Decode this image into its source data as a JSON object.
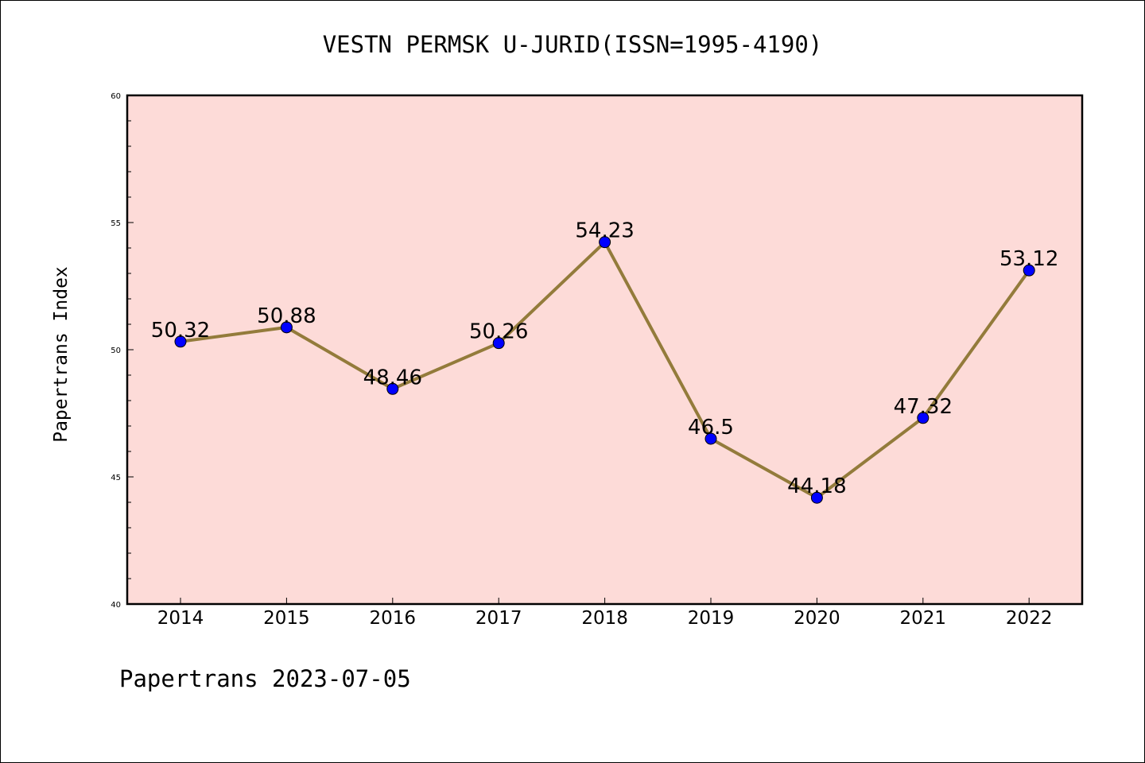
{
  "chart_data": {
    "type": "line",
    "title": "VESTN PERMSK U-JURID(ISSN=1995-4190)",
    "xlabel": "",
    "ylabel": "Papertrans Index",
    "categories": [
      "2014",
      "2015",
      "2016",
      "2017",
      "2018",
      "2019",
      "2020",
      "2021",
      "2022"
    ],
    "series": [
      {
        "values": [
          50.32,
          50.88,
          48.46,
          50.26,
          54.23,
          46.5,
          44.18,
          47.32,
          53.12
        ],
        "labels": [
          "50.32",
          "50.88",
          "48.46",
          "50.26",
          "54.23",
          "46.5",
          "44.18",
          "47.32",
          "53.12"
        ]
      }
    ],
    "ylim": [
      40,
      60
    ],
    "yticks": [
      "40",
      "45",
      "50",
      "55",
      "60"
    ],
    "grid": false,
    "legend": "none",
    "colors": {
      "plot_background": "#fddbd8",
      "line": "#937b3b",
      "marker": "#0000ff"
    }
  },
  "footer": {
    "text": "Papertrans 2023-07-05"
  }
}
